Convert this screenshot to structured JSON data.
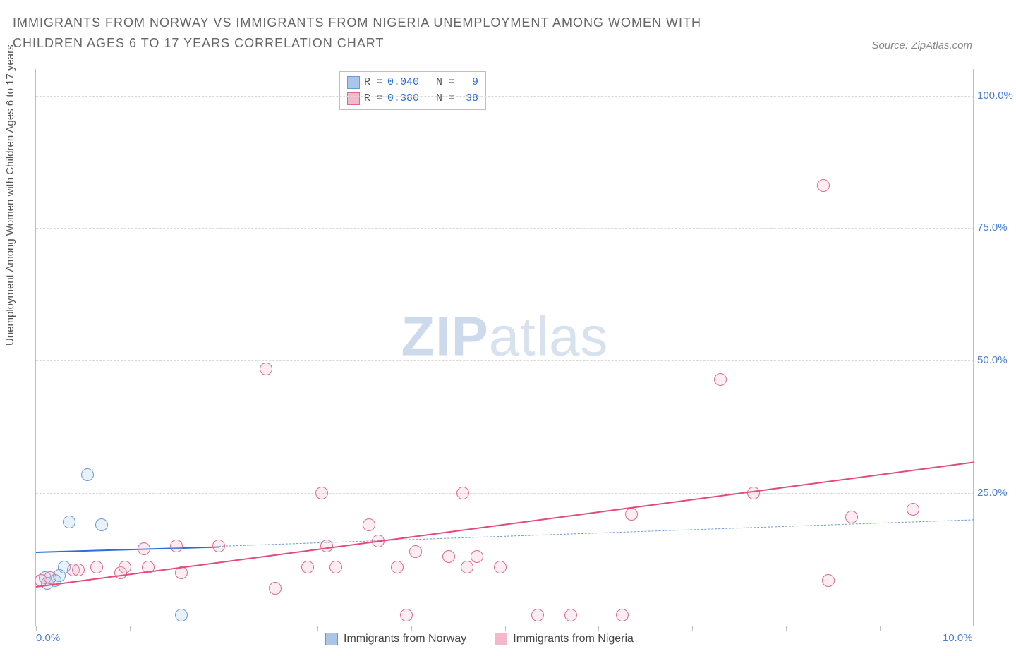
{
  "title": "IMMIGRANTS FROM NORWAY VS IMMIGRANTS FROM NIGERIA UNEMPLOYMENT AMONG WOMEN WITH CHILDREN AGES 6 TO 17 YEARS CORRELATION CHART",
  "source": "Source: ZipAtlas.com",
  "y_axis_label": "Unemployment Among Women with Children Ages 6 to 17 years",
  "watermark_bold": "ZIP",
  "watermark_light": "atlas",
  "chart": {
    "type": "scatter",
    "xlim": [
      0,
      10
    ],
    "ylim": [
      0,
      105
    ],
    "x_ticks": [
      0.0,
      1.0,
      2.0,
      3.0,
      4.0,
      5.0,
      6.0,
      7.0,
      8.0,
      9.0,
      10.0
    ],
    "x_tick_labels_shown": {
      "0": "0.0%",
      "10": "10.0%"
    },
    "y_ticks": [
      25.0,
      50.0,
      75.0,
      100.0
    ],
    "y_tick_labels": [
      "25.0%",
      "50.0%",
      "75.0%",
      "100.0%"
    ],
    "background_color": "#ffffff",
    "grid_color": "#d8d8d8",
    "axis_color": "#bfbfbf",
    "tick_label_color": "#4a7fd6",
    "marker_radius": 9,
    "marker_border_width": 1.5,
    "marker_fill_opacity": 0.25,
    "series": [
      {
        "name": "Immigrants from Norway",
        "color_border": "#6a9ad6",
        "color_fill": "#a9c6ea",
        "R": "0.040",
        "N": "9",
        "trend": {
          "x0": 0.0,
          "y0": 14.0,
          "x1": 1.95,
          "y1": 15.0,
          "style": "solid",
          "color": "#2a6fd6",
          "width": 2.5,
          "extend": {
            "x1": 10.0,
            "y1": 20.0,
            "style": "dashed",
            "color": "#6a9ad6",
            "width": 1.5
          }
        },
        "points": [
          {
            "x": 0.1,
            "y": 9.0
          },
          {
            "x": 0.12,
            "y": 8.0
          },
          {
            "x": 0.2,
            "y": 8.5
          },
          {
            "x": 0.3,
            "y": 11.0
          },
          {
            "x": 0.35,
            "y": 19.5
          },
          {
            "x": 0.55,
            "y": 28.5
          },
          {
            "x": 0.7,
            "y": 19.0
          },
          {
            "x": 0.25,
            "y": 9.5
          },
          {
            "x": 1.55,
            "y": 2.0
          }
        ]
      },
      {
        "name": "Immigrants from Nigeria",
        "color_border": "#e06a8f",
        "color_fill": "#f3b9cb",
        "R": "0.380",
        "N": "38",
        "trend": {
          "x0": 0.0,
          "y0": 7.5,
          "x1": 10.0,
          "y1": 31.0,
          "style": "solid",
          "color": "#e5487a",
          "width": 2.5
        },
        "points": [
          {
            "x": 0.05,
            "y": 8.5
          },
          {
            "x": 0.15,
            "y": 9.0
          },
          {
            "x": 0.4,
            "y": 10.5
          },
          {
            "x": 0.45,
            "y": 10.5
          },
          {
            "x": 0.65,
            "y": 11.0
          },
          {
            "x": 0.9,
            "y": 10.0
          },
          {
            "x": 0.95,
            "y": 11.0
          },
          {
            "x": 1.15,
            "y": 14.5
          },
          {
            "x": 1.2,
            "y": 11.0
          },
          {
            "x": 1.5,
            "y": 15.0
          },
          {
            "x": 1.55,
            "y": 10.0
          },
          {
            "x": 1.95,
            "y": 15.0
          },
          {
            "x": 2.45,
            "y": 48.5
          },
          {
            "x": 2.55,
            "y": 7.0
          },
          {
            "x": 2.9,
            "y": 11.0
          },
          {
            "x": 3.05,
            "y": 25.0
          },
          {
            "x": 3.1,
            "y": 15.0
          },
          {
            "x": 3.2,
            "y": 11.0
          },
          {
            "x": 3.55,
            "y": 19.0
          },
          {
            "x": 3.65,
            "y": 16.0
          },
          {
            "x": 3.85,
            "y": 11.0
          },
          {
            "x": 3.95,
            "y": 2.0
          },
          {
            "x": 4.05,
            "y": 14.0
          },
          {
            "x": 4.4,
            "y": 13.0
          },
          {
            "x": 4.55,
            "y": 25.0
          },
          {
            "x": 4.6,
            "y": 11.0
          },
          {
            "x": 4.7,
            "y": 13.0
          },
          {
            "x": 4.95,
            "y": 11.0
          },
          {
            "x": 5.35,
            "y": 2.0
          },
          {
            "x": 5.7,
            "y": 2.0
          },
          {
            "x": 6.25,
            "y": 2.0
          },
          {
            "x": 6.35,
            "y": 21.0
          },
          {
            "x": 7.3,
            "y": 46.5
          },
          {
            "x": 7.65,
            "y": 25.0
          },
          {
            "x": 8.4,
            "y": 83.0
          },
          {
            "x": 8.45,
            "y": 8.5
          },
          {
            "x": 8.7,
            "y": 20.5
          },
          {
            "x": 9.35,
            "y": 22.0
          }
        ]
      }
    ]
  },
  "legend_bottom": [
    {
      "label": "Immigrants from Norway",
      "border": "#6a9ad6",
      "fill": "#a9c6ea"
    },
    {
      "label": "Immigrants from Nigeria",
      "border": "#e06a8f",
      "fill": "#f3b9cb"
    }
  ]
}
